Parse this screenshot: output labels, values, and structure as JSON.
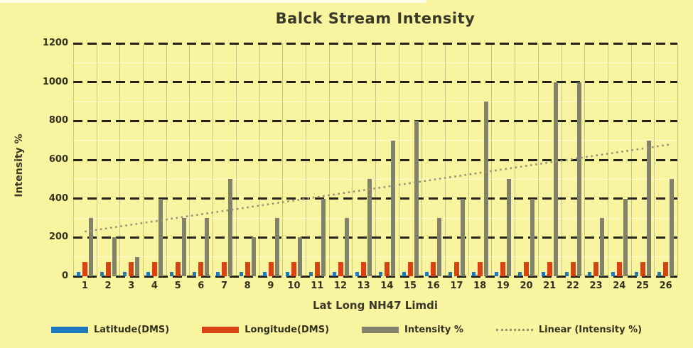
{
  "chart_data": {
    "type": "bar",
    "title": "Balck Stream Intensity",
    "xlabel": "Lat Long NH47 Limdi",
    "ylabel": "Intensity %",
    "ylim": [
      0,
      1200
    ],
    "ytick_step": 200,
    "yticks": [
      0,
      200,
      400,
      600,
      800,
      1000,
      1200
    ],
    "minor_grid_step": 100,
    "grid": "horizontal-dashed-with-faint-vertical-lines",
    "legend_position": "bottom",
    "categories": [
      "1",
      "2",
      "3",
      "4",
      "5",
      "6",
      "7",
      "8",
      "9",
      "10",
      "11",
      "12",
      "13",
      "14",
      "15",
      "16",
      "17",
      "18",
      "19",
      "20",
      "21",
      "22",
      "23",
      "24",
      "25",
      "26"
    ],
    "series": [
      {
        "name": "Latitude(DMS)",
        "color": "#1e78c0",
        "values": [
          22,
          22,
          22,
          22,
          22,
          22,
          22,
          22,
          22,
          22,
          22,
          22,
          22,
          22,
          22,
          22,
          22,
          22,
          22,
          22,
          22,
          22,
          22,
          22,
          22,
          22
        ]
      },
      {
        "name": "Longitude(DMS)",
        "color": "#d94214",
        "values": [
          72,
          72,
          72,
          72,
          72,
          72,
          72,
          72,
          72,
          72,
          72,
          72,
          72,
          72,
          72,
          72,
          72,
          72,
          72,
          72,
          72,
          72,
          72,
          72,
          72,
          72
        ]
      },
      {
        "name": "Intensity %",
        "color": "#82826c",
        "values": [
          300,
          200,
          100,
          400,
          300,
          300,
          500,
          200,
          300,
          200,
          400,
          300,
          500,
          700,
          800,
          300,
          400,
          900,
          500,
          400,
          1000,
          1000,
          300,
          400,
          700,
          500
        ]
      }
    ],
    "trendline": {
      "name": "Linear (Intensity %)",
      "style": "dotted",
      "color": "#9a9276",
      "start_value": 230,
      "end_value": 680
    }
  },
  "colors": {
    "background": "#f8f4a0",
    "text": "#3d3c26",
    "major_grid": "#25241a"
  }
}
